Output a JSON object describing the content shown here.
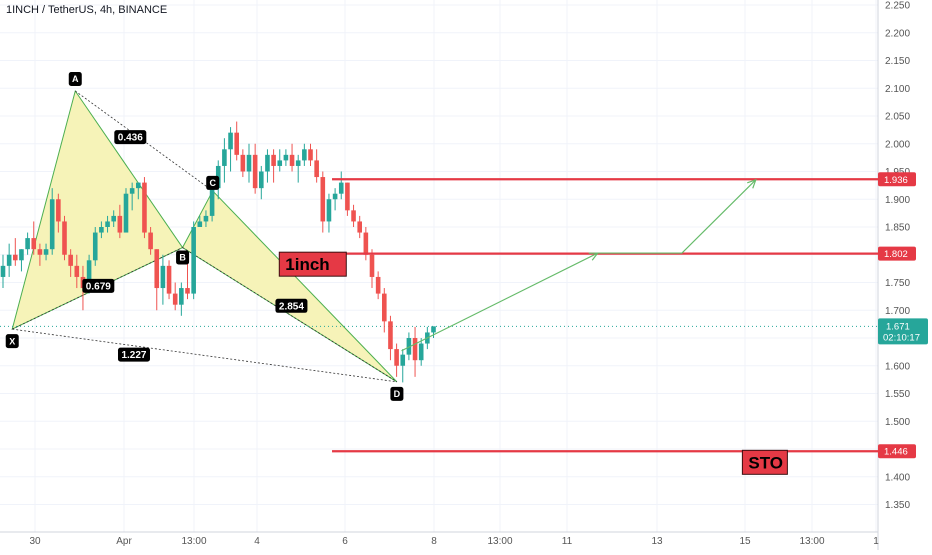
{
  "header": {
    "title": "1INCH / TetherUS, 4h, BINANCE"
  },
  "colors": {
    "up": "#26a69a",
    "down": "#ef5350",
    "harmonic_fill": "#f6f3b8",
    "harmonic_line": "#4caf50",
    "level_line": "#e53945",
    "projection": "#66bb6a",
    "last_price": "#26a69a"
  },
  "chart_data": {
    "type": "candlestick",
    "ylim": [
      1.3,
      2.25
    ],
    "y_ticks": [
      "2.250",
      "2.200",
      "2.150",
      "2.100",
      "2.050",
      "2.000",
      "1.950",
      "1.900",
      "1.850",
      "1.800",
      "1.750",
      "1.700",
      "1.650",
      "1.600",
      "1.550",
      "1.500",
      "1.450",
      "1.400",
      "1.350"
    ],
    "x_ticks": [
      "30",
      "Apr",
      "13:00",
      "4",
      "6",
      "8",
      "13:00",
      "11",
      "13",
      "15",
      "13:00",
      "1"
    ],
    "candles": [
      [
        1.76,
        1.8,
        1.74,
        1.78
      ],
      [
        1.78,
        1.82,
        1.76,
        1.8
      ],
      [
        1.8,
        1.83,
        1.78,
        1.79
      ],
      [
        1.79,
        1.81,
        1.77,
        1.81
      ],
      [
        1.81,
        1.84,
        1.8,
        1.83
      ],
      [
        1.83,
        1.86,
        1.8,
        1.81
      ],
      [
        1.81,
        1.82,
        1.78,
        1.8
      ],
      [
        1.8,
        1.82,
        1.79,
        1.81
      ],
      [
        1.81,
        1.92,
        1.8,
        1.9
      ],
      [
        1.9,
        1.91,
        1.84,
        1.86
      ],
      [
        1.86,
        1.87,
        1.79,
        1.8
      ],
      [
        1.8,
        1.81,
        1.76,
        1.78
      ],
      [
        1.78,
        1.8,
        1.74,
        1.76
      ],
      [
        1.76,
        1.78,
        1.7,
        1.74
      ],
      [
        1.74,
        1.8,
        1.73,
        1.79
      ],
      [
        1.79,
        1.85,
        1.78,
        1.84
      ],
      [
        1.84,
        1.86,
        1.83,
        1.85
      ],
      [
        1.85,
        1.87,
        1.84,
        1.86
      ],
      [
        1.86,
        1.88,
        1.85,
        1.87
      ],
      [
        1.87,
        1.89,
        1.83,
        1.84
      ],
      [
        1.84,
        1.92,
        1.84,
        1.91
      ],
      [
        1.91,
        1.93,
        1.88,
        1.92
      ],
      [
        1.92,
        1.93,
        1.9,
        1.93
      ],
      [
        1.93,
        1.94,
        1.83,
        1.84
      ],
      [
        1.84,
        1.85,
        1.8,
        1.81
      ],
      [
        1.81,
        1.81,
        1.7,
        1.74
      ],
      [
        1.74,
        1.8,
        1.71,
        1.78
      ],
      [
        1.78,
        1.79,
        1.72,
        1.73
      ],
      [
        1.73,
        1.75,
        1.7,
        1.71
      ],
      [
        1.71,
        1.75,
        1.69,
        1.74
      ],
      [
        1.74,
        1.8,
        1.72,
        1.73
      ],
      [
        1.73,
        1.86,
        1.72,
        1.85
      ],
      [
        1.85,
        1.87,
        1.85,
        1.86
      ],
      [
        1.86,
        1.88,
        1.85,
        1.87
      ],
      [
        1.87,
        1.93,
        1.86,
        1.92
      ],
      [
        1.92,
        1.97,
        1.9,
        1.96
      ],
      [
        1.96,
        2.01,
        1.93,
        1.99
      ],
      [
        1.99,
        2.03,
        1.95,
        2.02
      ],
      [
        2.02,
        2.04,
        1.97,
        1.98
      ],
      [
        1.98,
        1.99,
        1.94,
        1.95
      ],
      [
        1.95,
        2.0,
        1.93,
        1.98
      ],
      [
        1.98,
        2.0,
        1.91,
        1.92
      ],
      [
        1.92,
        1.96,
        1.9,
        1.95
      ],
      [
        1.95,
        1.99,
        1.93,
        1.98
      ],
      [
        1.98,
        1.99,
        1.93,
        1.96
      ],
      [
        1.96,
        1.99,
        1.95,
        1.97
      ],
      [
        1.97,
        1.99,
        1.96,
        1.98
      ],
      [
        1.98,
        2.0,
        1.95,
        1.96
      ],
      [
        1.96,
        1.98,
        1.93,
        1.97
      ],
      [
        1.97,
        2.0,
        1.96,
        1.99
      ],
      [
        1.99,
        2.0,
        1.96,
        1.97
      ],
      [
        1.97,
        1.99,
        1.93,
        1.94
      ],
      [
        1.94,
        1.95,
        1.84,
        1.86
      ],
      [
        1.86,
        1.91,
        1.84,
        1.9
      ],
      [
        1.9,
        1.92,
        1.88,
        1.91
      ],
      [
        1.91,
        1.95,
        1.9,
        1.93
      ],
      [
        1.93,
        1.93,
        1.87,
        1.88
      ],
      [
        1.88,
        1.89,
        1.85,
        1.86
      ],
      [
        1.86,
        1.87,
        1.83,
        1.84
      ],
      [
        1.84,
        1.85,
        1.79,
        1.8
      ],
      [
        1.8,
        1.81,
        1.74,
        1.76
      ],
      [
        1.76,
        1.77,
        1.72,
        1.73
      ],
      [
        1.73,
        1.74,
        1.66,
        1.68
      ],
      [
        1.68,
        1.69,
        1.61,
        1.63
      ],
      [
        1.63,
        1.64,
        1.58,
        1.6
      ],
      [
        1.6,
        1.63,
        1.57,
        1.62
      ],
      [
        1.62,
        1.66,
        1.61,
        1.65
      ],
      [
        1.65,
        1.67,
        1.58,
        1.61
      ],
      [
        1.61,
        1.65,
        1.6,
        1.64
      ],
      [
        1.64,
        1.67,
        1.63,
        1.66
      ],
      [
        1.66,
        1.67,
        1.65,
        1.671
      ]
    ],
    "pattern": {
      "points": [
        {
          "label": "X",
          "x": 1.5,
          "y": 1.666
        },
        {
          "label": "A",
          "x": 11.75,
          "y": 2.095
        },
        {
          "label": "B",
          "x": 29.2,
          "y": 1.813
        },
        {
          "label": "C",
          "x": 34.1,
          "y": 1.915
        },
        {
          "label": "D",
          "x": 64.05,
          "y": 1.571
        }
      ],
      "ratios": [
        {
          "text": "0.436",
          "x": 20.7,
          "y": 2.012
        },
        {
          "text": "0.679",
          "x": 15.5,
          "y": 1.744
        },
        {
          "text": "2.854",
          "x": 46.9,
          "y": 1.708
        },
        {
          "text": "1.227",
          "x": 21.3,
          "y": 1.62
        }
      ]
    },
    "levels": [
      {
        "price": 1.936,
        "label": "1.936",
        "x_start": 53.5
      },
      {
        "price": 1.802,
        "label": "1.802",
        "x_start": 46.2
      },
      {
        "price": 1.446,
        "label": "1.446",
        "x_start": 53.5
      }
    ],
    "last_price": {
      "price": 1.671,
      "label": "1.671",
      "countdown": "02:10:17"
    },
    "projection": [
      {
        "x": 64.8,
        "y": 1.627
      },
      {
        "x": 96.7,
        "y": 1.803
      },
      {
        "x": 110.4,
        "y": 1.803
      },
      {
        "x": 122.4,
        "y": 1.935
      }
    ],
    "annotations": [
      {
        "text": "1inch",
        "x": 45.9,
        "y": 1.783
      },
      {
        "text": "STO",
        "x": 121.2,
        "y": 1.426
      }
    ]
  }
}
